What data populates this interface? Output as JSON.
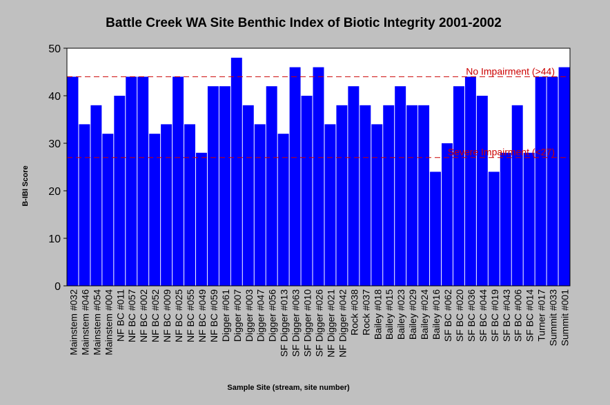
{
  "chart_data": {
    "type": "bar",
    "title": "Battle Creek WA Site Benthic Index of Biotic Integrity 2001-2002",
    "x_label": "Sample Site (stream, site number)",
    "y_label": "B-IBI Score",
    "categories": [
      "Mainstem #032",
      "Mainstem #046",
      "Mainstem #054",
      "Mainstem #004",
      "NF BC #011",
      "NF BC #057",
      "NF BC #002",
      "NF BC #052",
      "NF BC #009",
      "NF BC #025",
      "NF BC #055",
      "NF BC #049",
      "NF BC #059",
      "Digger #061",
      "Digger #007",
      "Digger #003",
      "Digger #047",
      "Digger #056",
      "SF Digger #013",
      "SF Digger #063",
      "SF Digger #010",
      "SF Digger #026",
      "NF Digger #021",
      "NF Digger #042",
      "Rock #038",
      "Rock #037",
      "Bailey #018",
      "Bailey #015",
      "Bailey #023",
      "Bailey #029",
      "Bailey #024",
      "Bailey #016",
      "SF BC #062",
      "SF BC #020",
      "SF BC #036",
      "SF BC #044",
      "SF BC #019",
      "SF BC #043",
      "SF BC #006",
      "SF BC #014",
      "Turner #017",
      "Summit #033",
      "Summit #001"
    ],
    "values": [
      44,
      34,
      38,
      32,
      40,
      44,
      44,
      32,
      34,
      44,
      34,
      28,
      42,
      42,
      48,
      38,
      34,
      42,
      32,
      46,
      40,
      46,
      34,
      38,
      42,
      38,
      34,
      38,
      42,
      38,
      38,
      24,
      30,
      42,
      44,
      40,
      24,
      28,
      38,
      28,
      44,
      44,
      46
    ],
    "color": "#0000ff",
    "ylim": [
      0,
      50
    ],
    "yticks": [
      0,
      10,
      20,
      30,
      40,
      50
    ],
    "reference_lines": [
      {
        "value": 44,
        "label": "No Impairment  (>44)",
        "color": "#cc0000"
      },
      {
        "value": 27,
        "label": "Severe Impairment (<27)",
        "color": "#cc0000"
      }
    ]
  }
}
